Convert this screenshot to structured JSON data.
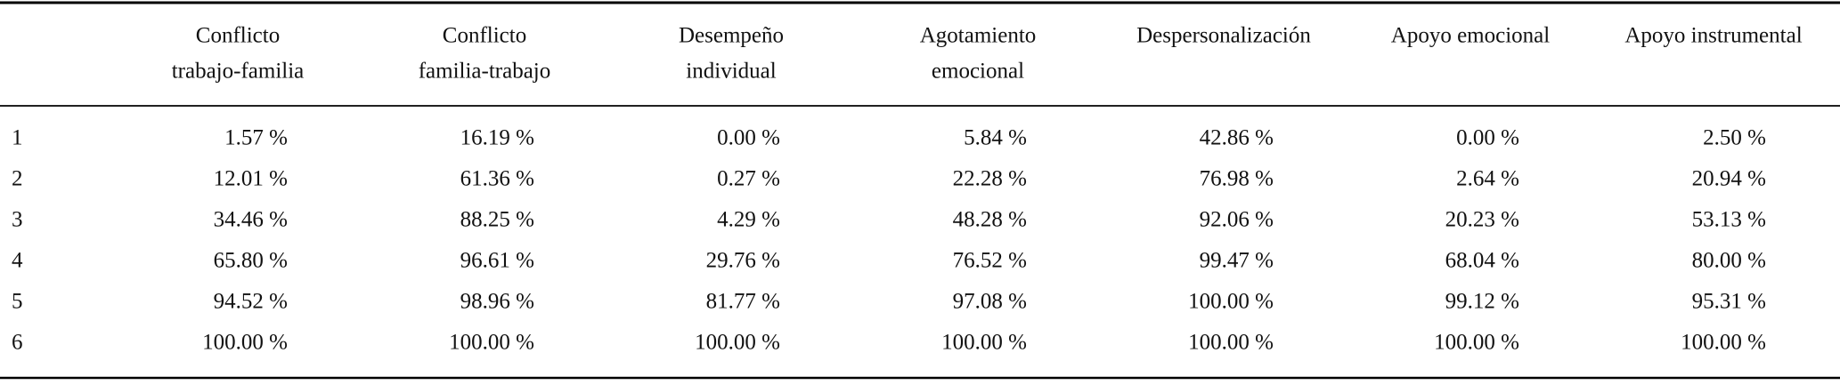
{
  "table": {
    "headers": [
      [
        "Conflicto",
        "trabajo-familia"
      ],
      [
        "Conflicto",
        "familia-trabajo"
      ],
      [
        "Desempeño",
        "individual"
      ],
      [
        "Agotamiento",
        "emocional"
      ],
      [
        "Despersonalización"
      ],
      [
        "Apoyo emocional"
      ],
      [
        "Apoyo instrumental"
      ]
    ],
    "rows": [
      [
        "1",
        "1.57 %",
        "16.19 %",
        "0.00 %",
        "5.84 %",
        "42.86 %",
        "0.00 %",
        "2.50 %"
      ],
      [
        "2",
        "12.01 %",
        "61.36 %",
        "0.27 %",
        "22.28 %",
        "76.98 %",
        "2.64 %",
        "20.94 %"
      ],
      [
        "3",
        "34.46 %",
        "88.25 %",
        "4.29 %",
        "48.28 %",
        "92.06 %",
        "20.23 %",
        "53.13 %"
      ],
      [
        "4",
        "65.80 %",
        "96.61 %",
        "29.76 %",
        "76.52 %",
        "99.47 %",
        "68.04 %",
        "80.00 %"
      ],
      [
        "5",
        "94.52 %",
        "98.96 %",
        "81.77 %",
        "97.08 %",
        "100.00 %",
        "99.12 %",
        "95.31 %"
      ],
      [
        "6",
        "100.00 %",
        "100.00 %",
        "100.00 %",
        "100.00 %",
        "100.00 %",
        "100.00 %",
        "100.00 %"
      ]
    ]
  }
}
